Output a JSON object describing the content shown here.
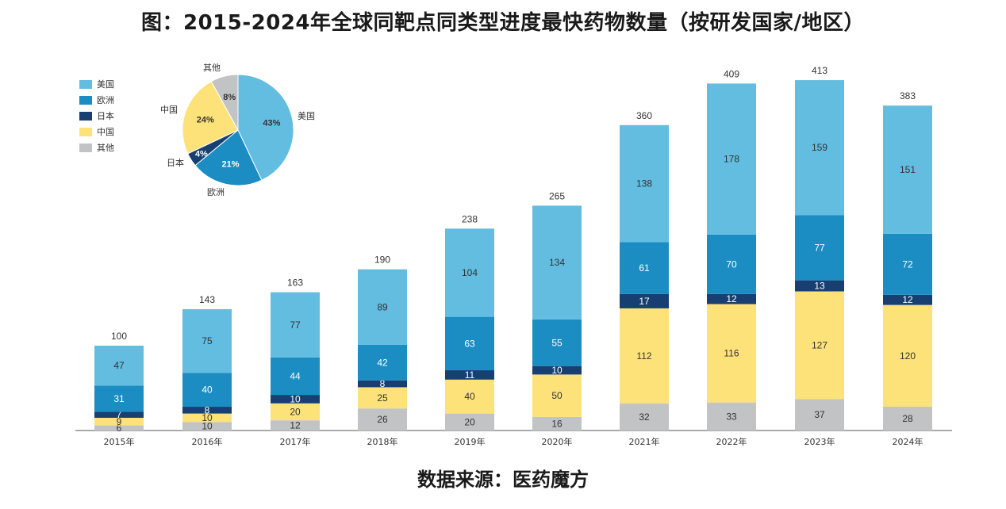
{
  "title": "图：2015-2024年全球同靶点同类型进度最快药物数量（按研发国家/地区）",
  "source": "数据来源：医药魔方",
  "chart_data": [
    {
      "type": "bar",
      "stacked": true,
      "categories": [
        "2015年",
        "2016年",
        "2017年",
        "2018年",
        "2019年",
        "2020年",
        "2021年",
        "2022年",
        "2023年",
        "2024年"
      ],
      "totals": [
        100,
        143,
        163,
        190,
        238,
        265,
        360,
        409,
        413,
        383
      ],
      "series": [
        {
          "name": "其他",
          "color": "#c2c3c4",
          "values": [
            6,
            10,
            12,
            26,
            20,
            16,
            32,
            33,
            37,
            28
          ]
        },
        {
          "name": "中国",
          "color": "#fde27a",
          "values": [
            9,
            10,
            20,
            25,
            40,
            50,
            112,
            116,
            127,
            120
          ]
        },
        {
          "name": "日本",
          "color": "#173f71",
          "values": [
            7,
            8,
            10,
            8,
            11,
            10,
            17,
            12,
            13,
            12
          ]
        },
        {
          "name": "欧洲",
          "color": "#1b8dc3",
          "values": [
            31,
            40,
            44,
            42,
            63,
            55,
            61,
            70,
            77,
            72
          ]
        },
        {
          "name": "美国",
          "color": "#62bde0",
          "values": [
            47,
            75,
            77,
            89,
            104,
            134,
            138,
            178,
            159,
            151
          ]
        }
      ],
      "legend": {
        "position": "top-left",
        "order": [
          "美国",
          "欧洲",
          "日本",
          "中国",
          "其他"
        ]
      }
    },
    {
      "type": "pie",
      "slices": [
        {
          "label": "美国",
          "value": 43,
          "display": "43%",
          "color": "#62bde0"
        },
        {
          "label": "欧洲",
          "value": 21,
          "display": "21%",
          "color": "#1b8dc3"
        },
        {
          "label": "日本",
          "value": 4,
          "display": "4%",
          "color": "#173f71"
        },
        {
          "label": "中国",
          "value": 24,
          "display": "24%",
          "color": "#fde27a"
        },
        {
          "label": "其他",
          "value": 8,
          "display": "8%",
          "color": "#c2c3c4"
        }
      ]
    }
  ]
}
